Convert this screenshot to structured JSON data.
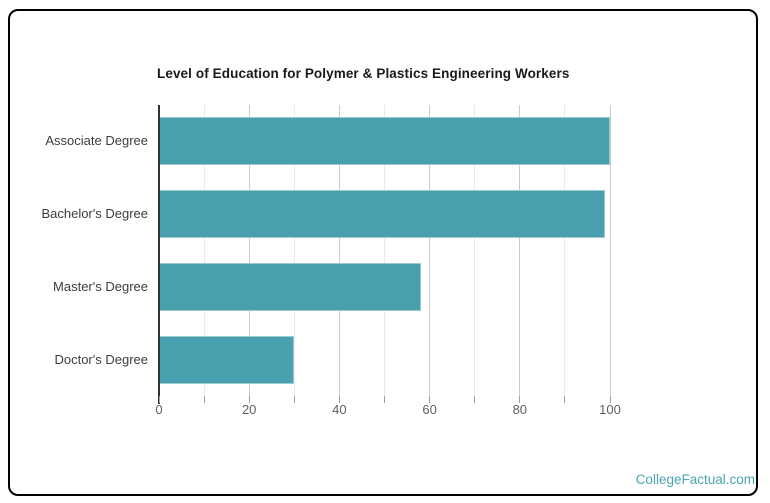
{
  "page": {
    "background": "#ffffff",
    "frame_border_color": "#000000"
  },
  "chart_data": {
    "type": "bar",
    "orientation": "horizontal",
    "title": "Level of Education for Polymer & Plastics Engineering Workers",
    "categories": [
      "Associate Degree",
      "Bachelor's Degree",
      "Master's Degree",
      "Doctor's Degree"
    ],
    "values": [
      100,
      99,
      58,
      30
    ],
    "xlabel": "",
    "ylabel": "",
    "xlim": [
      0,
      100
    ],
    "x_ticks": [
      0,
      20,
      40,
      60,
      80,
      100
    ],
    "grid_step_minor": 10,
    "grid_step_major": 20,
    "grid": "vertical gridlines only",
    "legend": "none",
    "bar_color": "#4a9fae",
    "title_color": "#1a1a1a",
    "category_label_color": "#3d3d3d",
    "tick_label_color": "#5f5f5f"
  },
  "watermark": {
    "text": "CollegeFactual.com",
    "color": "#4aa5b3"
  }
}
